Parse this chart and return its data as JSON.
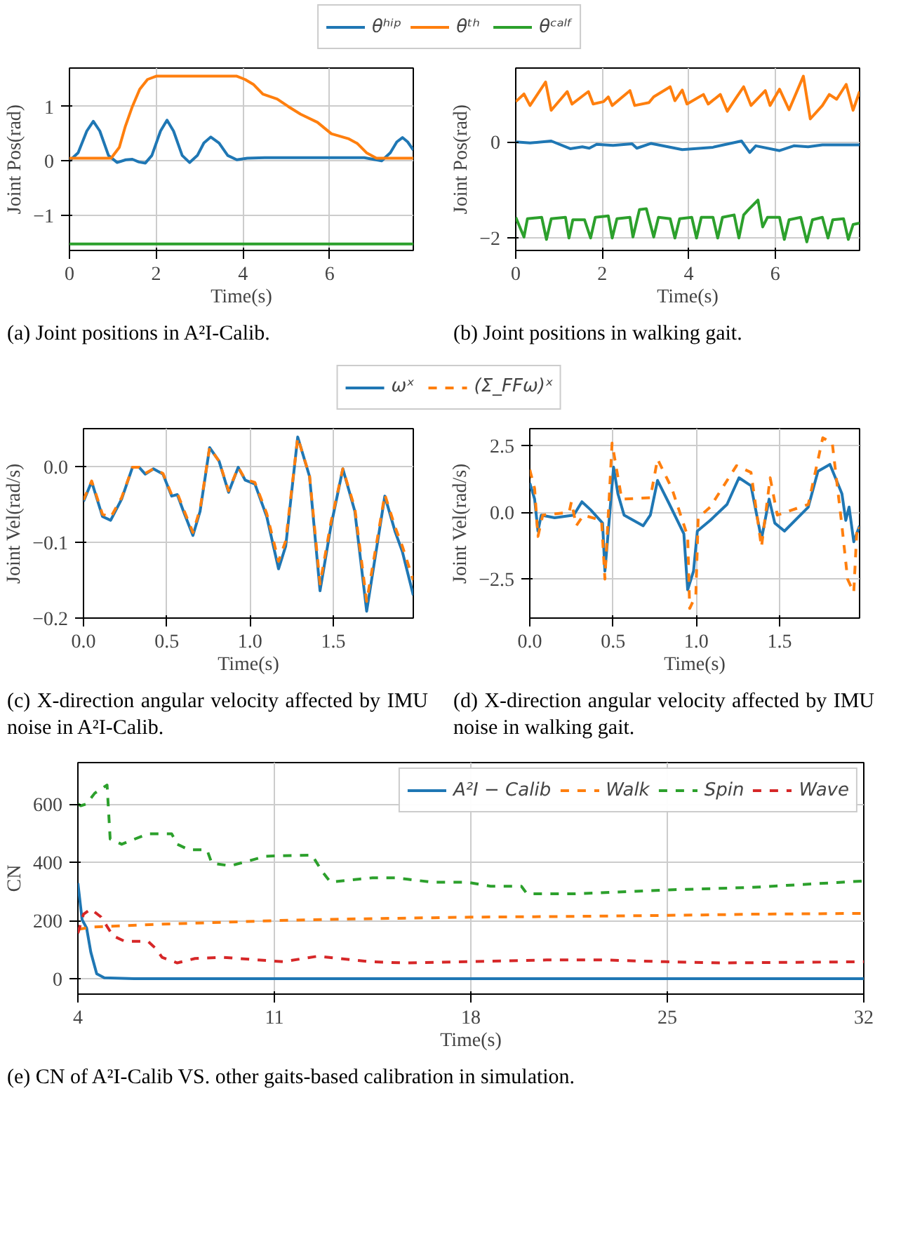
{
  "chart_data": [
    {
      "type": "line",
      "xlabel": "Time(s)",
      "ylabel": "Joint Pos(rad)",
      "xlim": [
        0,
        7.93
      ],
      "ylim": [
        -1.65,
        1.71
      ],
      "xticks": [
        0,
        2,
        4,
        6
      ],
      "yticks": [
        {
          "value": -1,
          "label": "−1"
        },
        0,
        1
      ],
      "grid": true,
      "legend": "top",
      "annotations": [
        "(a) Joint positions in A²I-Calib."
      ],
      "series": [
        {
          "name": "θʰⁱᵖ",
          "color": "#1f77b4",
          "x": [
            0,
            0.2,
            0.4,
            0.55,
            0.7,
            0.9,
            1.1,
            1.3,
            1.45,
            1.6,
            1.75,
            1.9,
            2.1,
            2.25,
            2.4,
            2.6,
            2.77,
            2.95,
            3.1,
            3.26,
            3.45,
            3.65,
            3.86,
            4.1,
            4.5,
            5,
            6,
            6.8,
            7.2,
            7.4,
            7.55,
            7.68,
            7.8,
            7.93
          ],
          "values": [
            0,
            0.15,
            0.55,
            0.73,
            0.55,
            0.1,
            -0.03,
            0.02,
            0.03,
            -0.02,
            -0.04,
            0.1,
            0.55,
            0.75,
            0.55,
            0.1,
            -0.03,
            0.1,
            0.33,
            0.44,
            0.33,
            0.1,
            0.02,
            0.05,
            0.06,
            0.06,
            0.06,
            0.06,
            0.0,
            0.15,
            0.35,
            0.43,
            0.35,
            0.2
          ]
        },
        {
          "name": "θᵗʰ",
          "color": "#ff7f0e",
          "x": [
            0,
            0.96,
            1.15,
            1.29,
            1.45,
            1.62,
            1.8,
            2.0,
            3.86,
            4.05,
            4.24,
            4.46,
            4.79,
            5.05,
            5.33,
            5.72,
            6.04,
            6.43,
            6.64,
            6.85,
            7.08,
            7.93
          ],
          "values": [
            0.05,
            0.05,
            0.25,
            0.64,
            1.0,
            1.32,
            1.5,
            1.56,
            1.56,
            1.5,
            1.41,
            1.23,
            1.14,
            1.0,
            0.86,
            0.71,
            0.5,
            0.41,
            0.32,
            0.15,
            0.05,
            0.05
          ]
        },
        {
          "name": "θᶜᵃˡᶠ",
          "color": "#2ca02c",
          "x": [
            0,
            7.93
          ],
          "values": [
            -1.53,
            -1.53
          ]
        }
      ]
    },
    {
      "type": "line",
      "xlabel": "Time(s)",
      "ylabel": "Joint Pos(rad)",
      "xlim": [
        0,
        7.95
      ],
      "ylim": [
        -2.26,
        1.54
      ],
      "xticks": [
        0,
        2,
        4,
        6
      ],
      "yticks": [
        {
          "value": -2,
          "label": "−2"
        },
        0
      ],
      "grid": true,
      "annotations": [
        "(b) Joint positions in walking gait."
      ],
      "series": [
        {
          "color": "#ff7f0e",
          "x": [
            0,
            0.19,
            0.33,
            0.69,
            0.82,
            1.19,
            1.3,
            1.68,
            1.79,
            2.03,
            2.14,
            2.23,
            2.64,
            2.75,
            3.08,
            3.19,
            3.57,
            3.68,
            3.85,
            3.96,
            4.34,
            4.45,
            4.73,
            4.89,
            5.11,
            5.27,
            5.44,
            5.77,
            5.88,
            6.1,
            6.32,
            6.65,
            6.81,
            7.09,
            7.25,
            7.42,
            7.64,
            7.8,
            7.95
          ],
          "values": [
            0.84,
            1.0,
            0.76,
            1.25,
            0.66,
            1.05,
            0.79,
            1.05,
            0.79,
            0.84,
            0.94,
            0.76,
            1.07,
            0.76,
            0.82,
            0.94,
            1.15,
            0.86,
            1.08,
            0.79,
            0.99,
            0.79,
            0.99,
            0.64,
            0.94,
            1.15,
            0.76,
            1.07,
            0.76,
            1.1,
            0.67,
            1.37,
            0.48,
            0.76,
            0.99,
            0.89,
            1.2,
            0.66,
            1.05
          ]
        },
        {
          "color": "#1f77b4",
          "x": [
            0,
            0.33,
            0.82,
            1.26,
            1.54,
            1.7,
            1.87,
            2.25,
            2.69,
            2.8,
            3.13,
            3.85,
            4.56,
            5.22,
            5.41,
            5.55,
            6.1,
            6.43,
            6.76,
            7.09,
            7.95
          ],
          "values": [
            0,
            -0.02,
            0.02,
            -0.14,
            -0.1,
            -0.13,
            -0.05,
            -0.07,
            -0.04,
            -0.13,
            -0.03,
            -0.16,
            -0.11,
            0.02,
            -0.22,
            -0.08,
            -0.18,
            -0.08,
            -0.1,
            -0.06,
            -0.06
          ]
        },
        {
          "color": "#2ca02c",
          "x": [
            0,
            0.19,
            0.27,
            0.6,
            0.71,
            0.82,
            1.15,
            1.23,
            1.32,
            1.59,
            1.73,
            1.84,
            2.14,
            2.23,
            2.34,
            2.64,
            2.71,
            2.86,
            3.02,
            3.19,
            3.3,
            3.57,
            3.68,
            3.79,
            4.07,
            4.18,
            4.29,
            4.56,
            4.67,
            4.78,
            5.05,
            5.16,
            5.27,
            5.38,
            5.6,
            5.71,
            5.82,
            6.1,
            6.21,
            6.32,
            6.59,
            6.73,
            6.86,
            7.09,
            7.22,
            7.33,
            7.58,
            7.69,
            7.8,
            7.95
          ],
          "values": [
            -1.57,
            -1.98,
            -1.6,
            -1.57,
            -2.03,
            -1.6,
            -1.57,
            -2.0,
            -1.62,
            -1.62,
            -2.0,
            -1.57,
            -1.54,
            -2.0,
            -1.6,
            -1.57,
            -1.98,
            -1.41,
            -1.39,
            -1.98,
            -1.57,
            -1.6,
            -2.0,
            -1.6,
            -1.57,
            -2.0,
            -1.57,
            -1.57,
            -2.0,
            -1.57,
            -1.52,
            -2.0,
            -1.52,
            -1.41,
            -1.21,
            -1.77,
            -1.57,
            -1.57,
            -2.03,
            -1.62,
            -1.57,
            -2.08,
            -1.62,
            -1.57,
            -2.0,
            -1.62,
            -1.6,
            -2.03,
            -1.72,
            -1.69
          ]
        }
      ]
    },
    {
      "type": "line",
      "xlabel": "Time(s)",
      "ylabel": "Joint Vel(rad/s)",
      "xlim": [
        0,
        1.98
      ],
      "ylim": [
        -0.2,
        0.05
      ],
      "xticks": [
        {
          "value": 0,
          "label": "0.0"
        },
        {
          "value": 0.5,
          "label": "0.5"
        },
        {
          "value": 1,
          "label": "1.0"
        },
        {
          "value": 1.5,
          "label": "1.5"
        }
      ],
      "yticks": [
        {
          "value": -0.2,
          "label": "−0.2"
        },
        {
          "value": -0.1,
          "label": "−0.1"
        },
        {
          "value": 0,
          "label": "0.0"
        }
      ],
      "grid": true,
      "legend": "top",
      "annotations": [
        "(c) X-direction angular velocity affected by IMU noise in A²I-Calib."
      ],
      "series": [
        {
          "name": "ωˣ",
          "color": "#1f77b4",
          "x": [
            0,
            0.049,
            0.114,
            0.163,
            0.229,
            0.294,
            0.334,
            0.371,
            0.42,
            0.477,
            0.529,
            0.563,
            0.6,
            0.657,
            0.7,
            0.757,
            0.814,
            0.871,
            0.929,
            0.971,
            1.029,
            1.1,
            1.171,
            1.214,
            1.286,
            1.357,
            1.42,
            1.486,
            1.557,
            1.629,
            1.7,
            1.809,
            1.871,
            1.914,
            1.98
          ],
          "values": [
            -0.046,
            -0.02,
            -0.066,
            -0.071,
            -0.043,
            -0.001,
            -0.001,
            -0.01,
            -0.003,
            -0.01,
            -0.039,
            -0.037,
            -0.059,
            -0.091,
            -0.059,
            0.025,
            0.007,
            -0.034,
            -0.001,
            -0.018,
            -0.023,
            -0.066,
            -0.135,
            -0.105,
            0.039,
            -0.013,
            -0.164,
            -0.078,
            -0.003,
            -0.059,
            -0.191,
            -0.039,
            -0.086,
            -0.112,
            -0.17
          ]
        },
        {
          "name": "(Σ_FFω)ˣ",
          "color": "#ff7f0e",
          "line_style": "dashed",
          "x": [
            0,
            0.049,
            0.114,
            0.163,
            0.229,
            0.294,
            0.334,
            0.371,
            0.42,
            0.477,
            0.529,
            0.563,
            0.6,
            0.657,
            0.7,
            0.757,
            0.814,
            0.871,
            0.929,
            0.971,
            1.029,
            1.1,
            1.171,
            1.214,
            1.286,
            1.357,
            1.42,
            1.486,
            1.557,
            1.629,
            1.7,
            1.809,
            1.871,
            1.914,
            1.98
          ],
          "values": [
            -0.044,
            -0.019,
            -0.063,
            -0.067,
            -0.041,
            -0.001,
            -0.001,
            -0.009,
            -0.003,
            -0.009,
            -0.037,
            -0.035,
            -0.056,
            -0.087,
            -0.056,
            0.025,
            0.007,
            -0.032,
            -0.001,
            -0.017,
            -0.021,
            -0.062,
            -0.125,
            -0.098,
            0.038,
            -0.012,
            -0.155,
            -0.073,
            -0.003,
            -0.055,
            -0.178,
            -0.037,
            -0.08,
            -0.105,
            -0.15
          ]
        }
      ]
    },
    {
      "type": "line",
      "xlabel": "Time(s)",
      "ylabel": "Joint Vel(rad/s)",
      "xlim": [
        0,
        1.98
      ],
      "ylim": [
        -3.96,
        3.14
      ],
      "xticks": [
        {
          "value": 0,
          "label": "0.0"
        },
        {
          "value": 0.5,
          "label": "0.5"
        },
        {
          "value": 1,
          "label": "1.0"
        },
        {
          "value": 1.5,
          "label": "1.5"
        }
      ],
      "yticks": [
        {
          "value": -2.5,
          "label": "−2.5"
        },
        {
          "value": 0,
          "label": "0.0"
        },
        {
          "value": 2.5,
          "label": "2.5"
        }
      ],
      "grid": true,
      "annotations": [
        "(d) X-direction angular velocity affected by IMU noise in walking gait."
      ],
      "series": [
        {
          "color": "#1f77b4",
          "x": [
            0,
            0.029,
            0.049,
            0.069,
            0.149,
            0.264,
            0.313,
            0.365,
            0.437,
            0.451,
            0.466,
            0.503,
            0.529,
            0.566,
            0.681,
            0.724,
            0.767,
            0.839,
            0.925,
            0.948,
            0.983,
            1.006,
            1.083,
            1.184,
            1.256,
            1.328,
            1.391,
            1.437,
            1.471,
            1.529,
            1.672,
            1.73,
            1.802,
            1.874,
            1.897,
            1.917,
            1.945,
            1.98
          ],
          "values": [
            1.1,
            0.5,
            -0.7,
            -0.1,
            -0.2,
            -0.1,
            0.4,
            0.1,
            -0.4,
            -2.2,
            -1.1,
            1.7,
            0.7,
            -0.1,
            -0.5,
            -0.1,
            1.2,
            0.3,
            -0.8,
            -2.9,
            -2.2,
            -0.7,
            -0.3,
            0.3,
            1.3,
            1.0,
            -1.0,
            0.5,
            -0.4,
            -0.7,
            0.2,
            1.54,
            1.8,
            0.7,
            -0.3,
            0.2,
            -1.1,
            -0.5
          ]
        },
        {
          "color": "#ff7f0e",
          "line_style": "dashed",
          "x": [
            0,
            0.029,
            0.049,
            0.078,
            0.236,
            0.25,
            0.279,
            0.322,
            0.431,
            0.451,
            0.494,
            0.552,
            0.724,
            0.767,
            0.853,
            0.948,
            0.96,
            0.997,
            1.011,
            1.083,
            1.241,
            1.328,
            1.391,
            1.443,
            1.486,
            1.672,
            1.759,
            1.816,
            1.874,
            1.908,
            1.945,
            1.965,
            1.98
          ],
          "values": [
            1.6,
            0.9,
            -0.9,
            -0.1,
            0.0,
            0.4,
            -0.5,
            -0.1,
            -0.3,
            -2.5,
            2.6,
            0.5,
            0.55,
            2.0,
            0.9,
            -0.9,
            -3.6,
            -3.1,
            -0.2,
            0.2,
            1.75,
            1.5,
            -1.3,
            1.3,
            -0.1,
            0.3,
            2.8,
            2.6,
            -0.5,
            -2.5,
            -3.0,
            -0.5,
            -0.6
          ]
        }
      ]
    },
    {
      "type": "line",
      "xlabel": "Time(s)",
      "ylabel": "CN",
      "xlim": [
        4,
        32
      ],
      "ylim": [
        -52,
        742
      ],
      "xticks": [
        4,
        11,
        18,
        25,
        32
      ],
      "yticks": [
        0,
        200,
        400,
        600
      ],
      "grid": true,
      "legend": "top right",
      "annotations": [
        "(e) CN of A²I-Calib VS. other gaits-based calibration in simulation."
      ],
      "series": [
        {
          "name": "A²I − Calib",
          "color": "#1f77b4",
          "x": [
            4,
            4.15,
            4.31,
            4.46,
            4.67,
            4.94,
            6,
            32
          ],
          "values": [
            329,
            203,
            175,
            92,
            18,
            4,
            1,
            1
          ]
        },
        {
          "name": "Walk",
          "color": "#ff7f0e",
          "line_style": "dashed",
          "x": [
            4,
            4.5,
            7,
            11,
            14,
            18,
            21,
            25,
            28,
            32
          ],
          "values": [
            170,
            178,
            188,
            200,
            206,
            212,
            214,
            218,
            222,
            225
          ]
        },
        {
          "name": "Spin",
          "color": "#2ca02c",
          "line_style": "dashed",
          "x": [
            4,
            4.1,
            4.3,
            4.6,
            5.04,
            5.15,
            5.56,
            6.5,
            7.34,
            7.54,
            7.96,
            8.6,
            8.77,
            9.44,
            10.7,
            12.34,
            12.7,
            13.0,
            14.5,
            15.3,
            15.75,
            16.6,
            17.85,
            18.7,
            19.8,
            20.0,
            21.7,
            24.9,
            28,
            32
          ],
          "values": [
            600,
            594,
            600,
            637,
            665,
            480,
            462,
            498,
            498,
            462,
            443,
            443,
            397,
            388,
            421,
            425,
            369,
            332,
            347,
            347,
            342,
            332,
            332,
            318,
            318,
            292,
            292,
            305,
            314,
            336
          ]
        },
        {
          "name": "Wave",
          "color": "#d62728",
          "line_style": "dashed",
          "x": [
            4,
            4.2,
            4.46,
            4.83,
            5.25,
            5.67,
            6.5,
            6.8,
            7.0,
            7.54,
            8.17,
            9.2,
            11.3,
            12.55,
            14.4,
            15.6,
            20.7,
            22.8,
            24.9,
            27,
            32
          ],
          "values": [
            157,
            222,
            240,
            212,
            148,
            129,
            129,
            102,
            74,
            55,
            70,
            74,
            59,
            78,
            59,
            55,
            65,
            65,
            59,
            55,
            59
          ]
        }
      ]
    }
  ]
}
